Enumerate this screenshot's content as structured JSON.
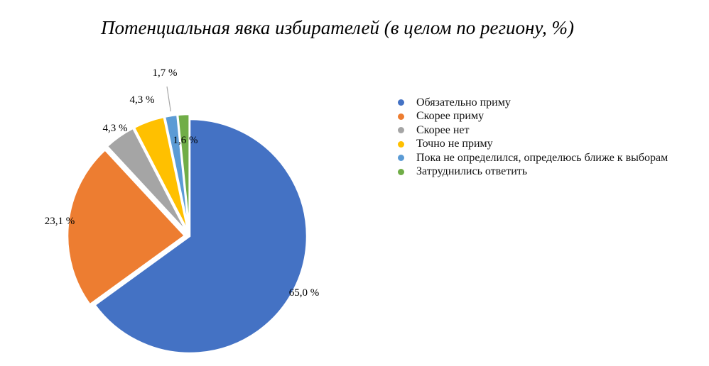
{
  "chart_data": {
    "type": "pie",
    "title": "Потенциальная явка избирателей (в целом по региону, %)",
    "legend_position": "right",
    "slices": [
      {
        "name": "Обязательно приму",
        "value": 65.0,
        "label": "65,0 %",
        "color": "#4472C4"
      },
      {
        "name": "Скорее приму",
        "value": 23.1,
        "label": "23,1 %",
        "color": "#ED7D31"
      },
      {
        "name": "Скорее нет",
        "value": 4.3,
        "label": "4,3 %",
        "color": "#A5A5A5"
      },
      {
        "name": "Точно не приму",
        "value": 4.3,
        "label": "4,3 %",
        "color": "#FFC000"
      },
      {
        "name": "Пока не определился, определюсь ближе к выборам",
        "value": 1.7,
        "label": "1,7 %",
        "color": "#5B9BD5"
      },
      {
        "name": "Затруднились ответить",
        "value": 1.6,
        "label": "1,6 %",
        "color": "#70AD47"
      }
    ]
  }
}
